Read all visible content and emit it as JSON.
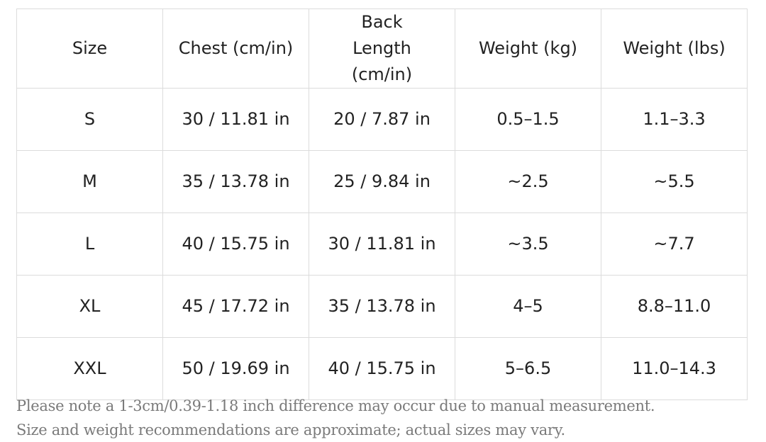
{
  "table": {
    "header": [
      "Size",
      "Chest (cm/in)",
      "Back Length (cm/in)",
      "Weight (kg)",
      "Weight (lbs)"
    ],
    "rows": [
      [
        "S",
        "30 / 11.81 in",
        "20 / 7.87 in",
        "0.5–1.5",
        "1.1–3.3"
      ],
      [
        "M",
        "35 / 13.78 in",
        "25 / 9.84 in",
        "~2.5",
        "~5.5"
      ],
      [
        "L",
        "40 / 15.75 in",
        "30 / 11.81 in",
        "~3.5",
        "~7.7"
      ],
      [
        "XL",
        "45 / 17.72 in",
        "35 / 13.78 in",
        "4–5",
        "8.8–11.0"
      ],
      [
        "XXL",
        "50 / 19.69 in",
        "40 / 15.75 in",
        "5–6.5",
        "11.0–14.3"
      ]
    ]
  },
  "notes": [
    "Please note a 1-3cm/0.39-1.18 inch difference may occur due to manual measurement.",
    "Size and weight recommendations are approximate; actual sizes may vary."
  ]
}
